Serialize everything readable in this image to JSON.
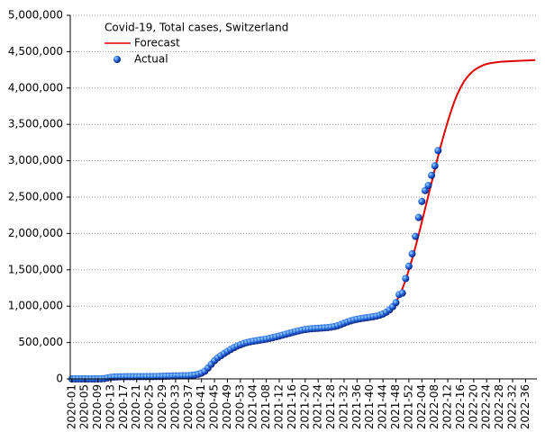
{
  "chart_data": {
    "type": "line",
    "title": "Covid-19, Total cases, Switzerland",
    "categories": [
      "2020-01",
      null,
      null,
      null,
      "2020-05",
      null,
      null,
      null,
      "2020-09",
      null,
      null,
      null,
      "2020-13",
      null,
      null,
      null,
      "2020-17",
      null,
      null,
      null,
      "2020-21",
      null,
      null,
      null,
      "2020-25",
      null,
      null,
      null,
      "2020-29",
      null,
      null,
      null,
      "2020-33",
      null,
      null,
      null,
      "2020-37",
      null,
      null,
      null,
      "2020-41",
      null,
      null,
      null,
      "2020-45",
      null,
      null,
      null,
      "2020-49",
      null,
      null,
      null,
      "2020-53",
      null,
      null,
      null,
      "2021-04",
      null,
      null,
      null,
      "2021-08",
      null,
      null,
      null,
      "2021-12",
      null,
      null,
      null,
      "2021-16",
      null,
      null,
      null,
      "2021-20",
      null,
      null,
      null,
      "2021-24",
      null,
      null,
      null,
      "2021-28",
      null,
      null,
      null,
      "2021-32",
      null,
      null,
      null,
      "2021-36",
      null,
      null,
      null,
      "2021-40",
      null,
      null,
      null,
      "2021-44",
      null,
      null,
      null,
      "2021-48",
      null,
      null,
      null,
      "2021-52",
      null,
      null,
      null,
      "2022-04",
      null,
      null,
      null,
      "2022-08",
      null,
      null,
      null,
      "2022-12",
      null,
      null,
      null,
      "2022-16",
      null,
      null,
      null,
      "2022-20",
      null,
      null,
      null,
      "2022-24",
      null,
      null,
      null,
      "2022-28",
      null,
      null,
      null,
      "2022-32",
      null,
      null,
      null,
      "2022-36",
      null,
      null,
      null
    ],
    "series": [
      {
        "name": "Forecast",
        "color": "#e00000",
        "style": "line",
        "values": [
          0,
          0,
          0,
          0,
          0,
          0,
          0,
          0,
          0,
          500,
          5000,
          15000,
          22000,
          26000,
          28000,
          29000,
          30000,
          30500,
          30800,
          31000,
          31200,
          31300,
          31500,
          31700,
          32000,
          32500,
          33000,
          34000,
          35000,
          36500,
          38000,
          39500,
          41000,
          43000,
          45000,
          47000,
          50000,
          54000,
          62000,
          78000,
          105000,
          140000,
          180000,
          220000,
          260000,
          300000,
          335000,
          370000,
          400000,
          428000,
          452000,
          472000,
          490000,
          505000,
          520000,
          532000,
          543000,
          553000,
          562000,
          570000,
          578000,
          586000,
          595000,
          604000,
          614000,
          624000,
          634000,
          645000,
          656000,
          666000,
          675000,
          683000,
          690000,
          695000,
          699000,
          702000,
          705000,
          707000,
          710000,
          713000,
          717000,
          722000,
          728000,
          736000,
          746000,
          758000,
          772000,
          786000,
          798000,
          808000,
          816000,
          823000,
          830000,
          838000,
          848000,
          862000,
          882000,
          910000,
          948000,
          998000,
          1060000,
          1140000,
          1240000,
          1360000,
          1500000,
          1650000,
          1810000,
          1980000,
          2160000,
          2340000,
          2520000,
          2700000,
          2880000,
          3060000,
          3230000,
          3390000,
          3540000,
          3680000,
          3810000,
          3920000,
          4010000,
          4090000,
          4150000,
          4200000,
          4240000,
          4270000,
          4295000,
          4315000,
          4330000,
          4340000,
          4348000,
          4354000,
          4359000,
          4363000,
          4366000,
          4368000,
          4370000,
          4372000,
          4374000,
          4376000,
          4378000,
          4380000,
          4382000,
          4384000
        ]
      },
      {
        "name": "Actual",
        "color": "#1f4fd0",
        "style": "markers",
        "values": [
          0,
          0,
          0,
          0,
          0,
          0,
          0,
          0,
          0,
          300,
          4000,
          14000,
          22000,
          26000,
          28000,
          29000,
          30000,
          30500,
          30800,
          31000,
          31200,
          31300,
          31500,
          31700,
          32000,
          32500,
          33000,
          34000,
          35000,
          36500,
          38000,
          39500,
          41000,
          42000,
          43000,
          44000,
          45000,
          49000,
          55000,
          65000,
          80000,
          105000,
          150000,
          200000,
          250000,
          290000,
          320000,
          350000,
          378000,
          405000,
          430000,
          452000,
          470000,
          487000,
          500000,
          510000,
          518000,
          526000,
          533000,
          540000,
          548000,
          557000,
          567000,
          578000,
          590000,
          602000,
          614000,
          626000,
          638000,
          650000,
          661000,
          671000,
          679000,
          685000,
          690000,
          693000,
          696000,
          699000,
          702000,
          706000,
          712000,
          720000,
          732000,
          748000,
          766000,
          783000,
          798000,
          810000,
          820000,
          828000,
          835000,
          841000,
          848000,
          855000,
          864000,
          876000,
          893000,
          918000,
          950000,
          992000,
          1050000,
          1160000,
          1180000,
          1380000,
          1550000,
          1720000,
          1960000,
          2220000,
          2440000,
          2590000,
          2660000,
          2800000,
          2930000,
          3140000,
          null,
          null,
          null,
          null,
          null,
          null,
          null,
          null,
          null,
          null,
          null,
          null,
          null,
          null,
          null,
          null,
          null,
          null,
          null,
          null,
          null,
          null,
          null,
          null,
          null,
          null,
          null,
          null,
          null,
          null
        ]
      }
    ],
    "ylim": [
      0,
      5000000
    ],
    "yticks": [
      0,
      {
        "value": 500000,
        "label": "500,000"
      },
      {
        "value": 1000000,
        "label": "1,000,000"
      },
      {
        "value": 1500000,
        "label": "1,500,000"
      },
      {
        "value": 2000000,
        "label": "2,000,000"
      },
      {
        "value": 2500000,
        "label": "2,500,000"
      },
      {
        "value": 3000000,
        "label": "3,000,000"
      },
      {
        "value": 3500000,
        "label": "3,500,000"
      },
      {
        "value": 4000000,
        "label": "4,000,000"
      },
      {
        "value": 4500000,
        "label": "4,500,000"
      },
      {
        "value": 5000000,
        "label": "5,000,000"
      }
    ],
    "grid": true,
    "legend": "upper left"
  }
}
